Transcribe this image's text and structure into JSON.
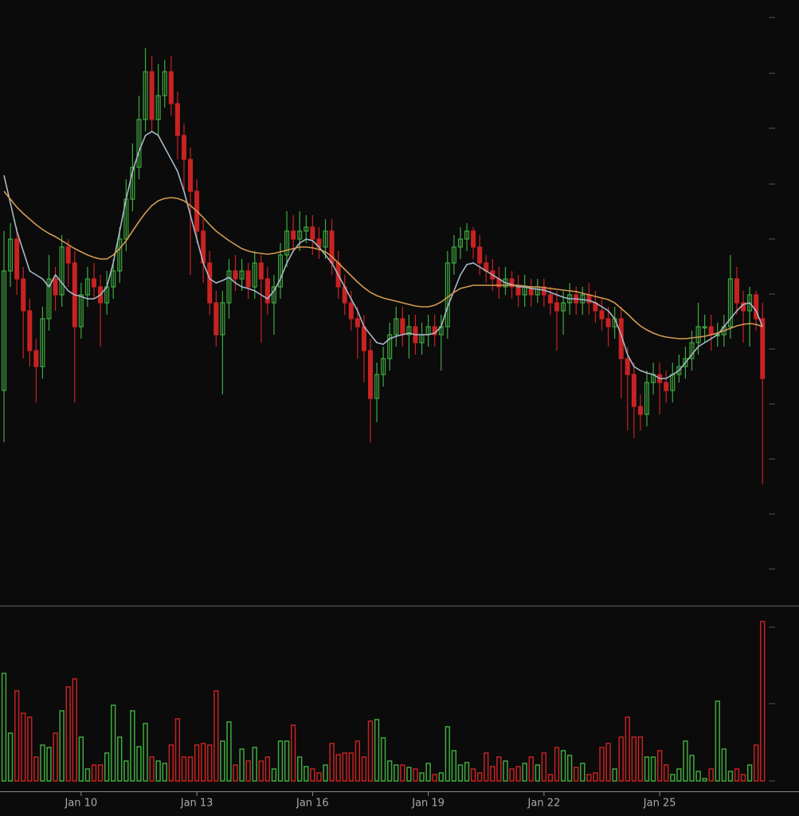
{
  "chart_data": {
    "type": "candlestick",
    "up_color": "#3faa3f",
    "down_color": "#c82222",
    "xlim": [
      -0.62,
      118.96
    ],
    "xticks": [
      {
        "value": 12,
        "label": "Jan 10"
      },
      {
        "value": 30,
        "label": "Jan 13"
      },
      {
        "value": 48,
        "label": "Jan 16"
      },
      {
        "value": 66,
        "label": "Jan 19"
      },
      {
        "value": 84,
        "label": "Jan 22"
      },
      {
        "value": 102,
        "label": "Jan 25"
      }
    ],
    "ylim": [
      0,
      760
    ],
    "yticks": [
      46,
      115,
      184,
      253,
      322,
      391,
      460,
      529,
      599,
      668,
      738
    ],
    "volume_lim": [
      0,
      210
    ],
    "volume_ticks": [
      0,
      97,
      193
    ],
    "open": [
      270,
      420,
      460,
      410,
      370,
      320,
      300,
      360,
      410,
      390,
      450,
      430,
      350,
      390,
      410,
      400,
      380,
      400,
      420,
      460,
      510,
      550,
      610,
      670,
      610,
      640,
      670,
      630,
      590,
      560,
      520,
      470,
      430,
      380,
      340,
      380,
      420,
      410,
      420,
      400,
      430,
      410,
      380,
      400,
      440,
      470,
      460,
      470,
      475,
      460,
      450,
      470,
      430,
      400,
      380,
      360,
      350,
      320,
      260,
      290,
      310,
      340,
      360,
      340,
      350,
      330,
      340,
      350,
      340,
      350,
      430,
      450,
      460,
      470,
      450,
      430,
      420,
      410,
      400,
      410,
      400,
      390,
      400,
      390,
      400,
      390,
      380,
      370,
      380,
      390,
      380,
      390,
      380,
      370,
      360,
      350,
      360,
      310,
      290,
      250,
      240,
      280,
      290,
      280,
      270,
      290,
      300,
      310,
      330,
      350,
      350,
      340,
      340,
      350,
      410,
      380,
      370,
      390,
      360
    ],
    "high": [
      470,
      480,
      475,
      425,
      385,
      335,
      375,
      440,
      425,
      465,
      460,
      445,
      405,
      425,
      430,
      415,
      420,
      435,
      475,
      535,
      580,
      640,
      700,
      690,
      680,
      685,
      690,
      645,
      605,
      575,
      535,
      485,
      445,
      395,
      395,
      435,
      440,
      435,
      430,
      445,
      440,
      425,
      415,
      455,
      495,
      490,
      495,
      490,
      490,
      475,
      485,
      485,
      445,
      415,
      395,
      375,
      365,
      335,
      305,
      325,
      355,
      375,
      375,
      365,
      365,
      355,
      365,
      365,
      365,
      445,
      465,
      475,
      480,
      475,
      465,
      440,
      435,
      425,
      425,
      420,
      415,
      415,
      410,
      410,
      410,
      400,
      395,
      395,
      405,
      400,
      400,
      405,
      395,
      385,
      375,
      375,
      375,
      325,
      305,
      265,
      295,
      305,
      305,
      295,
      305,
      315,
      325,
      345,
      380,
      365,
      365,
      355,
      365,
      440,
      425,
      395,
      400,
      395,
      380
    ],
    "low": [
      205,
      400,
      390,
      310,
      300,
      255,
      285,
      345,
      370,
      375,
      400,
      255,
      335,
      375,
      385,
      325,
      365,
      385,
      405,
      445,
      495,
      535,
      595,
      595,
      590,
      625,
      615,
      560,
      520,
      415,
      455,
      405,
      365,
      325,
      265,
      360,
      395,
      395,
      385,
      385,
      330,
      365,
      340,
      385,
      425,
      445,
      445,
      455,
      440,
      435,
      435,
      415,
      385,
      365,
      345,
      310,
      280,
      205,
      230,
      275,
      295,
      325,
      325,
      310,
      315,
      315,
      325,
      325,
      295,
      335,
      415,
      435,
      445,
      435,
      415,
      405,
      395,
      385,
      390,
      385,
      375,
      375,
      375,
      380,
      375,
      365,
      320,
      340,
      365,
      365,
      365,
      365,
      355,
      345,
      325,
      335,
      260,
      220,
      210,
      220,
      225,
      265,
      240,
      255,
      255,
      280,
      285,
      295,
      315,
      330,
      320,
      325,
      325,
      335,
      365,
      330,
      325,
      345,
      152
    ],
    "close": [
      420,
      460,
      410,
      370,
      320,
      300,
      360,
      410,
      390,
      450,
      430,
      350,
      390,
      410,
      400,
      380,
      400,
      420,
      460,
      510,
      550,
      610,
      670,
      610,
      640,
      670,
      630,
      590,
      560,
      520,
      470,
      430,
      380,
      340,
      380,
      420,
      410,
      420,
      400,
      430,
      410,
      380,
      400,
      440,
      470,
      460,
      470,
      475,
      460,
      450,
      470,
      430,
      400,
      380,
      360,
      350,
      320,
      260,
      290,
      310,
      340,
      360,
      340,
      350,
      330,
      340,
      350,
      340,
      350,
      430,
      450,
      460,
      470,
      450,
      430,
      420,
      410,
      400,
      410,
      400,
      390,
      400,
      390,
      400,
      390,
      380,
      370,
      380,
      390,
      380,
      390,
      380,
      370,
      360,
      350,
      360,
      310,
      290,
      250,
      240,
      280,
      290,
      280,
      270,
      290,
      300,
      310,
      330,
      350,
      350,
      340,
      340,
      350,
      410,
      380,
      370,
      390,
      360,
      285
    ],
    "volume": [
      135,
      60,
      113,
      85,
      80,
      30,
      45,
      42,
      60,
      88,
      118,
      128,
      55,
      15,
      20,
      20,
      35,
      95,
      55,
      25,
      88,
      43,
      72,
      30,
      25,
      22,
      45,
      78,
      30,
      30,
      45,
      47,
      45,
      113,
      50,
      74,
      20,
      40,
      25,
      42,
      25,
      30,
      15,
      50,
      50,
      70,
      30,
      18,
      15,
      10,
      20,
      47,
      33,
      35,
      35,
      50,
      30,
      75,
      77,
      54,
      25,
      20,
      20,
      17,
      15,
      10,
      22,
      8,
      10,
      68,
      38,
      20,
      23,
      15,
      10,
      35,
      18,
      30,
      25,
      15,
      18,
      22,
      30,
      20,
      35,
      8,
      42,
      38,
      32,
      17,
      22,
      8,
      10,
      42,
      47,
      15,
      55,
      80,
      55,
      55,
      30,
      30,
      38,
      20,
      8,
      15,
      50,
      32,
      12,
      3,
      15,
      100,
      40,
      12,
      15,
      8,
      20,
      45,
      200
    ],
    "lines": [
      {
        "color": "#a9b9c9",
        "values": [
          540,
          505,
          470,
          445,
          420,
          415,
          410,
          400,
          415,
          405,
          395,
          390,
          388,
          385,
          385,
          390,
          400,
          430,
          470,
          510,
          545,
          570,
          590,
          595,
          590,
          575,
          560,
          545,
          520,
          490,
          460,
          430,
          410,
          405,
          408,
          412,
          405,
          400,
          398,
          395,
          390,
          385,
          395,
          410,
          430,
          445,
          455,
          460,
          458,
          450,
          440,
          430,
          415,
          400,
          385,
          370,
          350,
          340,
          330,
          328,
          335,
          338,
          340,
          342,
          340,
          340,
          340,
          342,
          350,
          375,
          395,
          415,
          428,
          430,
          425,
          420,
          415,
          410,
          405,
          403,
          400,
          400,
          398,
          397,
          396,
          393,
          390,
          387,
          385,
          385,
          384,
          383,
          380,
          375,
          370,
          360,
          340,
          315,
          300,
          295,
          292,
          290,
          285,
          285,
          290,
          295,
          305,
          315,
          325,
          330,
          335,
          340,
          350,
          360,
          370,
          378,
          380,
          370,
          350
        ]
      },
      {
        "color": "#d49a52",
        "values": [
          520,
          510,
          500,
          492,
          485,
          478,
          472,
          467,
          463,
          458,
          453,
          448,
          444,
          440,
          437,
          435,
          435,
          440,
          448,
          458,
          470,
          482,
          493,
          502,
          508,
          511,
          512,
          511,
          508,
          502,
          495,
          487,
          478,
          470,
          464,
          458,
          453,
          448,
          445,
          443,
          442,
          441,
          442,
          444,
          446,
          448,
          450,
          450,
          449,
          447,
          444,
          438,
          430,
          422,
          414,
          406,
          399,
          393,
          389,
          386,
          384,
          382,
          380,
          378,
          376,
          375,
          375,
          377,
          381,
          387,
          393,
          398,
          400,
          402,
          402,
          402,
          402,
          402,
          402,
          402,
          402,
          401,
          400,
          400,
          399,
          398,
          397,
          396,
          395,
          394,
          392,
          390,
          388,
          386,
          384,
          380,
          373,
          366,
          358,
          351,
          346,
          342,
          339,
          337,
          336,
          335,
          335,
          336,
          337,
          338,
          340,
          342,
          345,
          348,
          351,
          353,
          354,
          353,
          350
        ]
      }
    ]
  }
}
